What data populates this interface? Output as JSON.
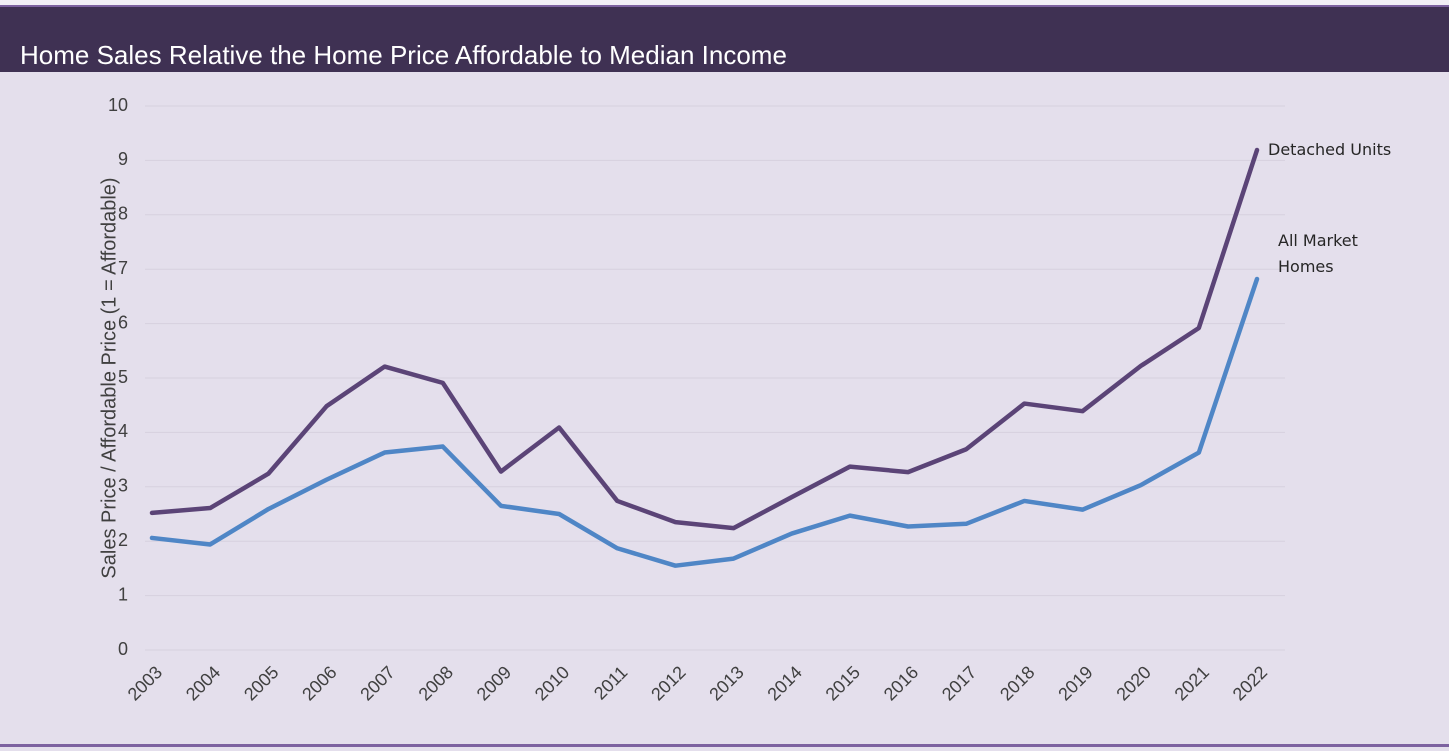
{
  "chart_data": {
    "type": "line",
    "title": "Home Sales Relative the Home Price Affordable to Median Income",
    "y_label": "Sales Price / Affordable Price (1 = Affordable)",
    "categories": [
      "2003",
      "2004",
      "2005",
      "2006",
      "2007",
      "2008",
      "2009",
      "2010",
      "2011",
      "2012",
      "2013",
      "2014",
      "2015",
      "2016",
      "2017",
      "2018",
      "2019",
      "2020",
      "2021",
      "2022"
    ],
    "series": [
      {
        "name": "Detached Units",
        "color": "#5b4477",
        "values": [
          2.52,
          2.61,
          3.24,
          4.48,
          5.21,
          4.91,
          3.28,
          4.09,
          2.74,
          2.35,
          2.24,
          2.81,
          3.37,
          3.27,
          3.69,
          4.53,
          4.39,
          5.22,
          5.92,
          9.19
        ]
      },
      {
        "name": "All Market Homes",
        "color": "#4f86c6",
        "values": [
          2.06,
          1.94,
          2.59,
          3.13,
          3.63,
          3.74,
          2.65,
          2.5,
          1.87,
          1.55,
          1.68,
          2.14,
          2.47,
          2.27,
          2.32,
          2.74,
          2.58,
          3.03,
          3.63,
          6.82
        ]
      }
    ],
    "ylim": [
      0,
      10
    ],
    "yticks": [
      0,
      1,
      2,
      3,
      4,
      5,
      6,
      7,
      8,
      9,
      10
    ],
    "grid": true
  }
}
